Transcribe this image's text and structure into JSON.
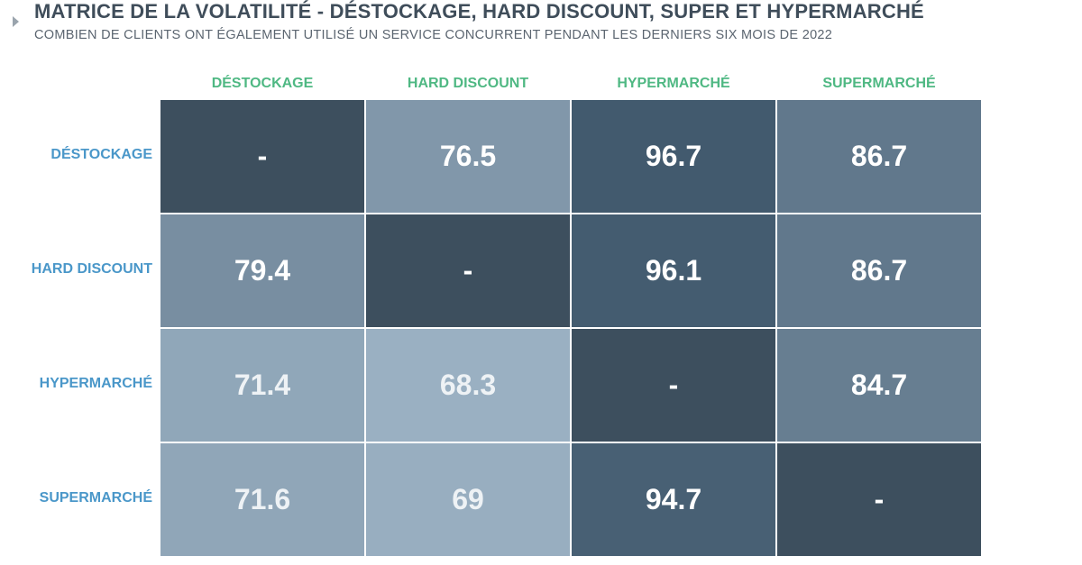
{
  "header": {
    "title": "MATRICE DE LA VOLATILITÉ - DÉSTOCKAGE, HARD DISCOUNT, SUPER ET HYPERMARCHÉ",
    "subtitle": "COMBIEN DE CLIENTS ONT ÉGALEMENT UTILISÉ UN SERVICE CONCURRENT PENDANT LES DERNIERS SIX MOIS DE 2022"
  },
  "colors": {
    "column_header": "#4fb883",
    "row_header": "#4a97c9",
    "diagonal": "#3d4f5e",
    "scale_low": "#9ab0c2",
    "scale_high": "#425a6e"
  },
  "chart_data": {
    "type": "heatmap",
    "title": "MATRICE DE LA VOLATILITÉ - DÉSTOCKAGE, HARD DISCOUNT, SUPER ET HYPERMARCHÉ",
    "subtitle": "COMBIEN DE CLIENTS ONT ÉGALEMENT UTILISÉ UN SERVICE CONCURRENT PENDANT LES DERNIERS SIX MOIS DE 2022",
    "columns": [
      "DÉSTOCKAGE",
      "HARD DISCOUNT",
      "HYPERMARCHÉ",
      "SUPERMARCHÉ"
    ],
    "rows": [
      "DÉSTOCKAGE",
      "HARD DISCOUNT",
      "HYPERMARCHÉ",
      "SUPERMARCHÉ"
    ],
    "values": [
      [
        null,
        76.5,
        96.7,
        86.7
      ],
      [
        79.4,
        null,
        96.1,
        86.7
      ],
      [
        71.4,
        68.3,
        null,
        84.7
      ],
      [
        71.6,
        69,
        94.7,
        null
      ]
    ],
    "missing_label": "-"
  }
}
